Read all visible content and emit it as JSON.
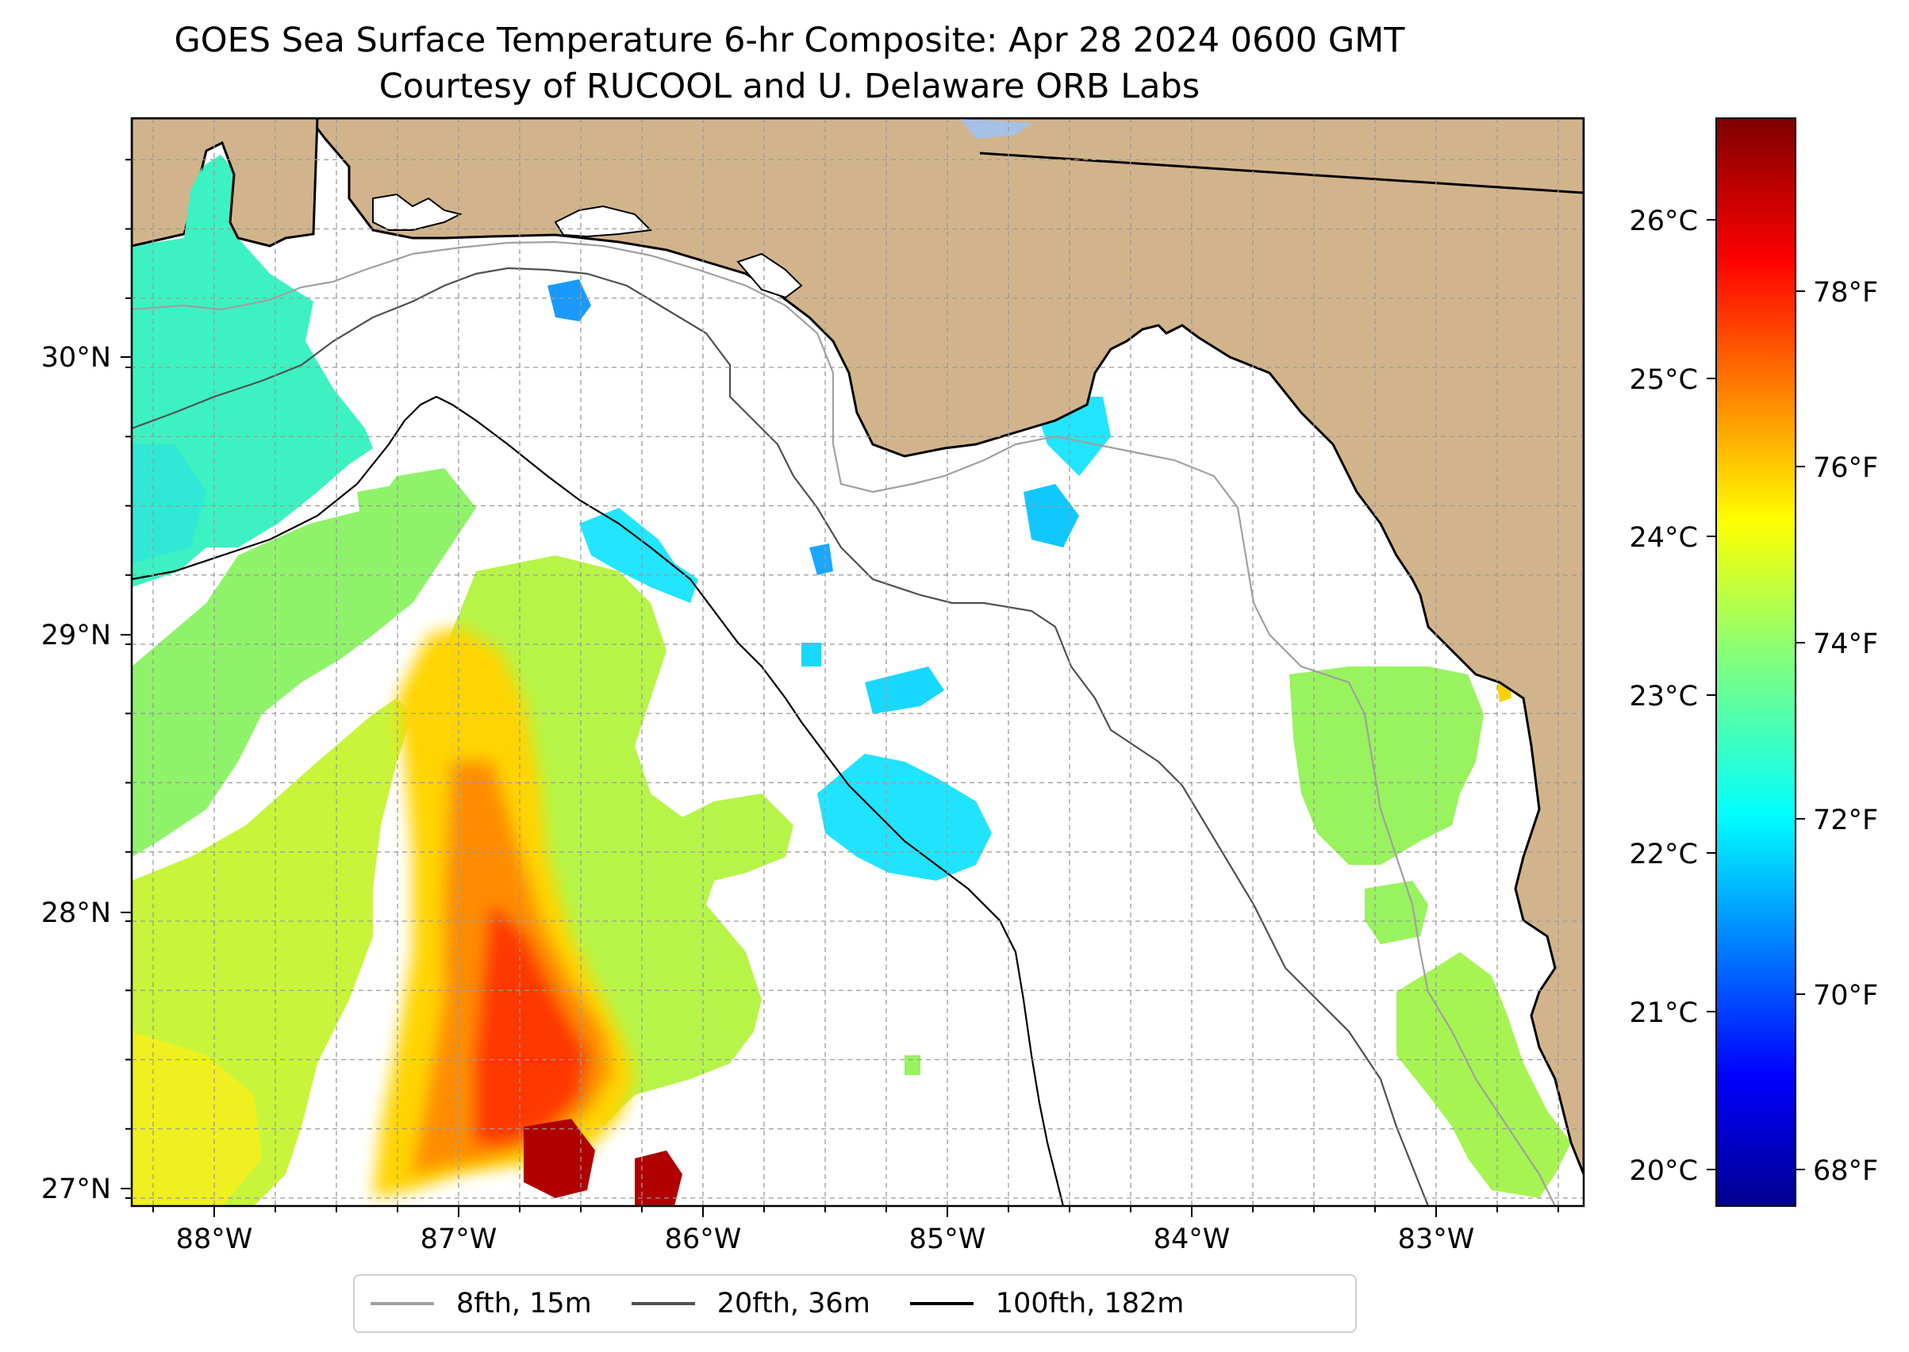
{
  "title": {
    "line1": "GOES Sea Surface Temperature 6-hr Composite: Apr 28 2024 0600 GMT",
    "line2": "Courtesy of RUCOOL and U. Delaware ORB Labs"
  },
  "map_axes": {
    "lon_ticks": [
      "88°W",
      "87°W",
      "86°W",
      "85°W",
      "84°W",
      "83°W"
    ],
    "lat_ticks": [
      "30°N",
      "29°N",
      "28°N",
      "27°N"
    ],
    "gridlines": "dashed",
    "land_color": "#d2b48c",
    "nodata_color": "#ffffff"
  },
  "colorbar": {
    "celsius_ticks": [
      "26°C",
      "25°C",
      "24°C",
      "23°C",
      "22°C",
      "21°C",
      "20°C"
    ],
    "fahrenheit_ticks": [
      "78°F",
      "76°F",
      "74°F",
      "72°F",
      "70°F",
      "68°F"
    ],
    "colormap": "jet",
    "range_c": [
      19.8,
      26.6
    ]
  },
  "legend": {
    "items": [
      {
        "label": "8fth, 15m",
        "color": "#a0a0a0"
      },
      {
        "label": "20fth, 36m",
        "color": "#505050"
      },
      {
        "label": "100fth, 182m",
        "color": "#000000"
      }
    ]
  }
}
